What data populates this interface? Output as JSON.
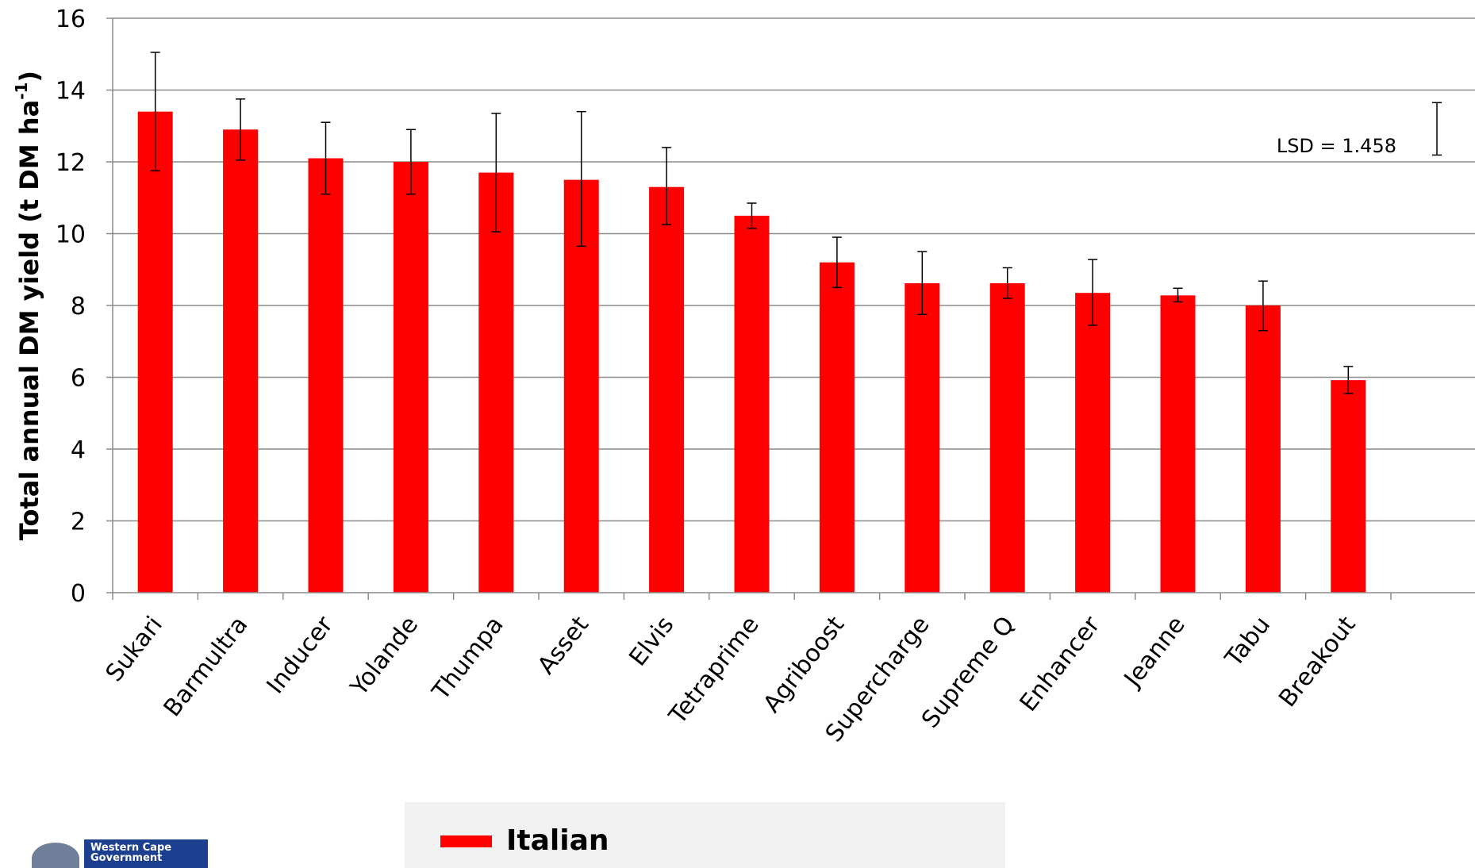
{
  "chart_data": {
    "type": "bar",
    "title": "",
    "ylabel": "Total annual DM yield (t DM ha",
    "ylabel_superscript": "-1",
    "ylabel_close": ")",
    "ylim": [
      0,
      16
    ],
    "yticks": [
      0,
      2,
      4,
      6,
      8,
      10,
      12,
      14,
      16
    ],
    "grid": "horizontal",
    "bar_color": "#ff0000",
    "categories": [
      "Sukari",
      "Barmultra",
      "Inducer",
      "Yolande",
      "Thumpa",
      "Asset",
      "Elvis",
      "Tetraprime",
      "Agriboost",
      "Supercharge",
      "Supreme Q",
      "Enhancer",
      "Jeanne",
      "Tabu",
      "Breakout"
    ],
    "series": [
      {
        "name": "Italian",
        "values": [
          13.4,
          12.9,
          12.1,
          12.0,
          11.7,
          11.5,
          11.3,
          10.5,
          9.2,
          8.62,
          8.62,
          8.35,
          8.28,
          8.0,
          5.92
        ],
        "error_low": [
          11.75,
          12.05,
          11.1,
          11.1,
          10.05,
          9.65,
          10.25,
          10.15,
          8.5,
          7.75,
          8.2,
          7.45,
          8.1,
          7.3,
          5.55
        ],
        "error_high": [
          15.05,
          13.75,
          13.1,
          12.9,
          13.35,
          13.4,
          12.4,
          10.85,
          9.9,
          9.5,
          9.05,
          9.28,
          8.48,
          8.68,
          6.3
        ]
      }
    ],
    "lsd": {
      "label": "LSD = 1.458",
      "value": 1.458,
      "top": 13.65,
      "bottom": 12.19
    },
    "legend": {
      "position": "bottom",
      "entries": [
        "Italian"
      ]
    }
  },
  "logo": {
    "text": "Western Cape Government"
  }
}
